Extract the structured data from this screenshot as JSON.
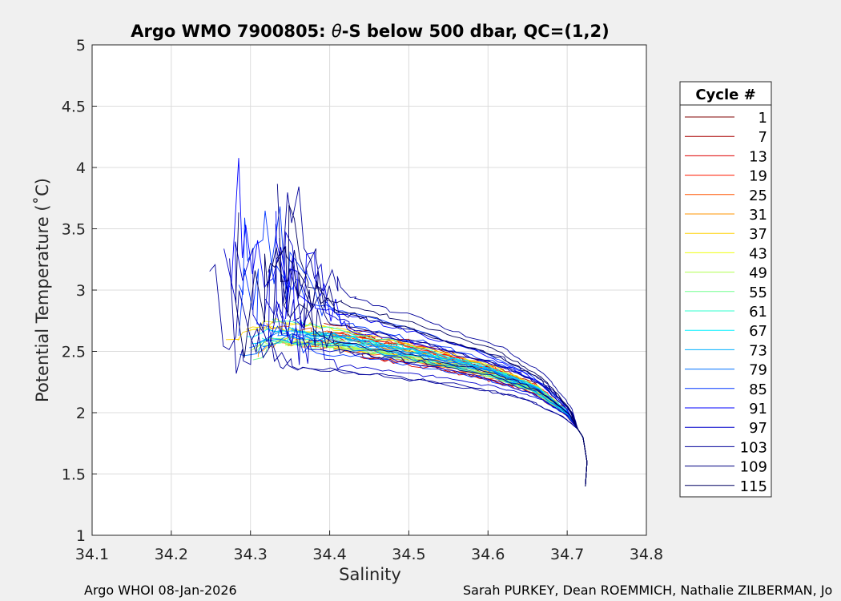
{
  "chart_data": {
    "type": "line",
    "title": "Argo WMO 7900805: θ-S below 500 dbar,  QC=(1,2)",
    "title_prefix": "Argo WMO 7900805: ",
    "title_theta": "θ",
    "title_suffix": "-S below 500 dbar,  QC=(1,2)",
    "xlabel": "Salinity",
    "ylabel": "Potential Temperature (˚C)",
    "xlim": [
      34.1,
      34.8
    ],
    "ylim": [
      1,
      5
    ],
    "xticks": [
      "34.1",
      "34.2",
      "34.3",
      "34.4",
      "34.5",
      "34.6",
      "34.7",
      "34.8"
    ],
    "yticks": [
      "1",
      "1.5",
      "2",
      "2.5",
      "3",
      "3.5",
      "4",
      "4.5",
      "5"
    ],
    "grid": true,
    "legend": {
      "title": "Cycle #",
      "placement": "right",
      "entries": [
        {
          "label": "1",
          "color": "#800000"
        },
        {
          "label": "7",
          "color": "#a80000"
        },
        {
          "label": "13",
          "color": "#dd0000"
        },
        {
          "label": "19",
          "color": "#ff1a00"
        },
        {
          "label": "25",
          "color": "#ff5500"
        },
        {
          "label": "31",
          "color": "#ff9500"
        },
        {
          "label": "37",
          "color": "#ffd000"
        },
        {
          "label": "43",
          "color": "#f0ff10"
        },
        {
          "label": "49",
          "color": "#b0ff50"
        },
        {
          "label": "55",
          "color": "#70ff8f"
        },
        {
          "label": "61",
          "color": "#30ffcf"
        },
        {
          "label": "67",
          "color": "#00f0ff"
        },
        {
          "label": "73",
          "color": "#00b0ff"
        },
        {
          "label": "79",
          "color": "#0070ff"
        },
        {
          "label": "85",
          "color": "#0035ff"
        },
        {
          "label": "91",
          "color": "#0000ff"
        },
        {
          "label": "97",
          "color": "#0000cc"
        },
        {
          "label": "103",
          "color": "#00009a"
        },
        {
          "label": "109",
          "color": "#000080"
        },
        {
          "label": "115",
          "color": "#000060"
        }
      ]
    },
    "trend_points": [
      {
        "s": 34.26,
        "t": 2.45
      },
      {
        "s": 34.33,
        "t": 2.66
      },
      {
        "s": 34.4,
        "t": 2.62
      },
      {
        "s": 34.5,
        "t": 2.5
      },
      {
        "s": 34.6,
        "t": 2.35
      },
      {
        "s": 34.66,
        "t": 2.2
      },
      {
        "s": 34.7,
        "t": 2.0
      },
      {
        "s": 34.72,
        "t": 1.8
      },
      {
        "s": 34.725,
        "t": 1.6
      },
      {
        "s": 34.723,
        "t": 1.4
      }
    ]
  },
  "footer": {
    "left": "Argo WHOI 08-Jan-2026",
    "right": "Sarah PURKEY, Dean ROEMMICH, Nathalie ZILBERMAN, Jo"
  }
}
